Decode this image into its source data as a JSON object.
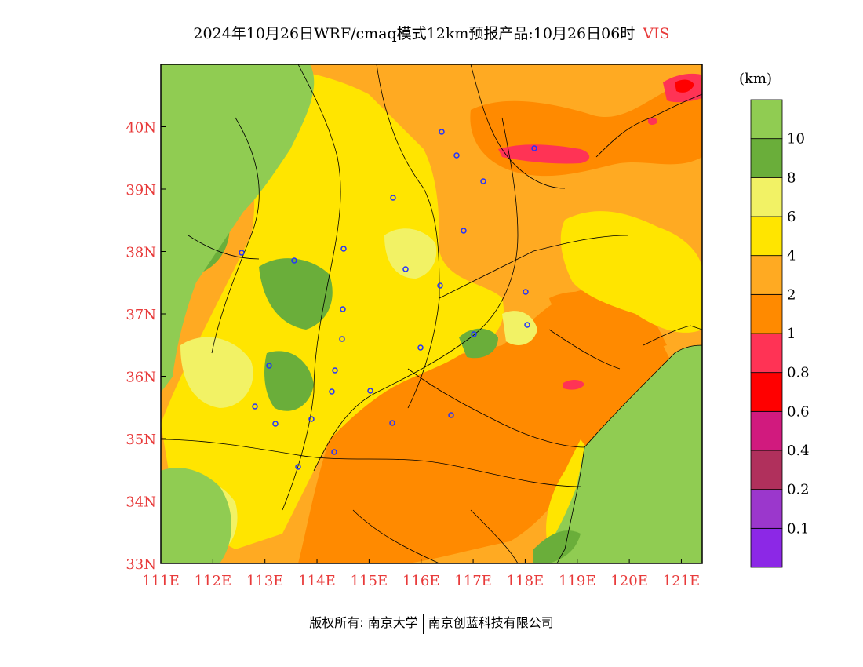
{
  "title": {
    "main": "2024年10月26日WRF/cmaq模式12km预报产品:10月26日06时",
    "variable": "VIS"
  },
  "colorbar": {
    "unit": "(km)",
    "levels": [
      {
        "label": "",
        "color": "#8c28e6"
      },
      {
        "label": "0.1",
        "color": "#9b37cc"
      },
      {
        "label": "0.2",
        "color": "#b0305c"
      },
      {
        "label": "0.4",
        "color": "#d11a7e"
      },
      {
        "label": "0.6",
        "color": "#ff0000"
      },
      {
        "label": "0.8",
        "color": "#ff3355"
      },
      {
        "label": "1",
        "color": "#ff8a00"
      },
      {
        "label": "2",
        "color": "#ffaa22"
      },
      {
        "label": "4",
        "color": "#ffe500"
      },
      {
        "label": "6",
        "color": "#f2f265"
      },
      {
        "label": "8",
        "color": "#6aae3a"
      },
      {
        "label": "10",
        "color": "#90cc52"
      }
    ]
  },
  "map": {
    "lon_labels": [
      "111E",
      "112E",
      "113E",
      "114E",
      "115E",
      "116E",
      "117E",
      "118E",
      "119E",
      "120E",
      "121E"
    ],
    "lat_labels": [
      "33N",
      "34N",
      "35N",
      "36N",
      "37N",
      "38N",
      "39N",
      "40N"
    ],
    "lon_range": [
      111,
      121.4
    ],
    "lat_range": [
      33,
      41
    ]
  },
  "credit": {
    "left": "版权所有: 南京大学",
    "right": "南京创蓝科技有限公司"
  }
}
